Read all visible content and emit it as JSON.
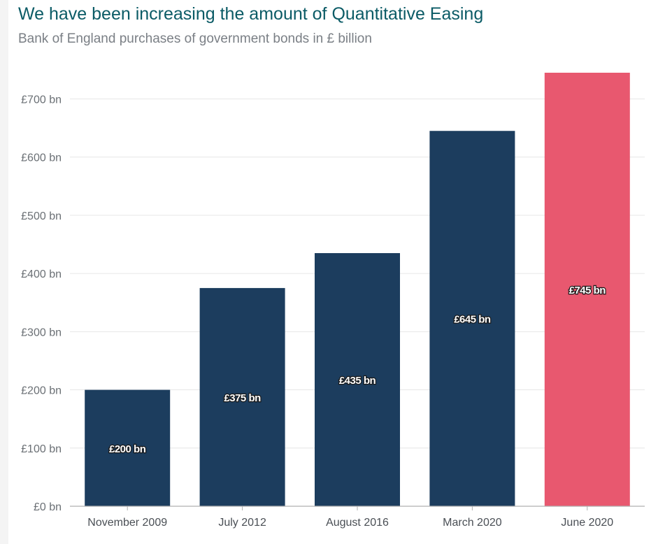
{
  "title": "We have been increasing the amount of Quantitative Easing",
  "subtitle": "Bank of England purchases of government bonds in £ billion",
  "colors": {
    "bar": "#1c3d5e",
    "highlight": "#e8586f",
    "grid": "#e6e6e6",
    "axis": "#b0b0b0",
    "title": "#0b5b66"
  },
  "chart_data": {
    "type": "bar",
    "title": "We have been increasing the amount of Quantitative Easing",
    "subtitle": "Bank of England purchases of government bonds in £ billion",
    "xlabel": "",
    "ylabel": "",
    "categories": [
      "November 2009",
      "July 2012",
      "August 2016",
      "March 2020",
      "June 2020"
    ],
    "values": [
      200,
      375,
      435,
      645,
      745
    ],
    "data_labels": [
      "£200 bn",
      "£375 bn",
      "£435 bn",
      "£645 bn",
      "£745 bn"
    ],
    "highlighted_index": 4,
    "ylim": [
      0,
      745
    ],
    "yticks": [
      0,
      100,
      200,
      300,
      400,
      500,
      600,
      700
    ],
    "ytick_labels": [
      "£0 bn",
      "£100 bn",
      "£200 bn",
      "£300 bn",
      "£400 bn",
      "£500 bn",
      "£600 bn",
      "£700 bn"
    ],
    "grid": true,
    "legend": "none"
  }
}
